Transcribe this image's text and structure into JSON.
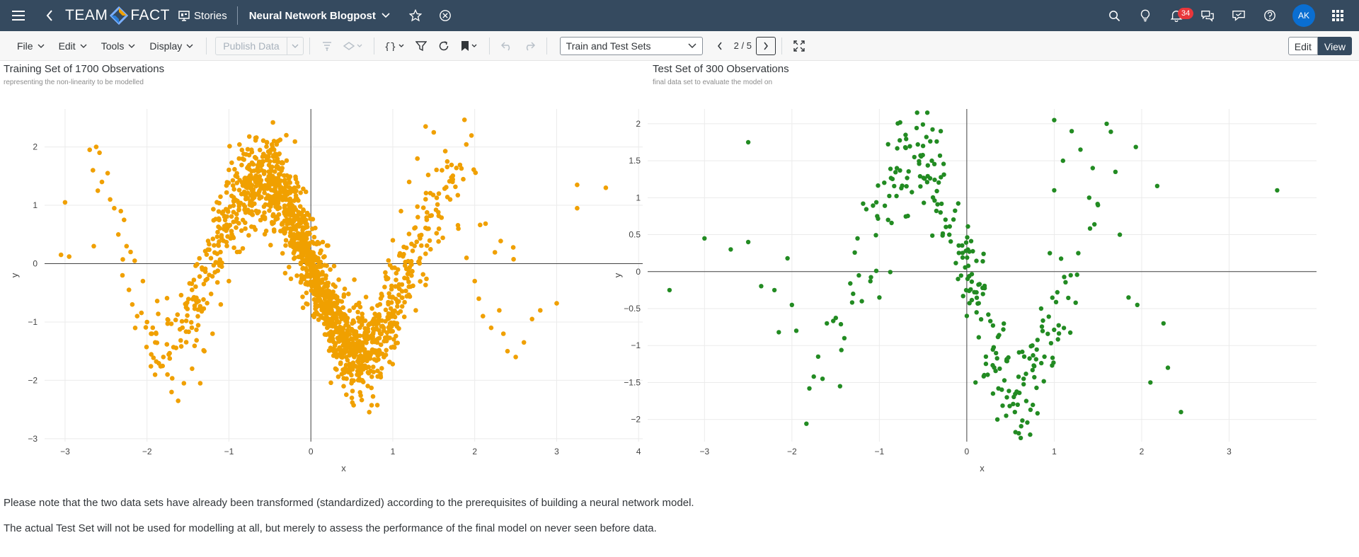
{
  "shell": {
    "logo_left": "TEAM",
    "logo_right": "FACT",
    "stories_label": "Stories",
    "story_title": "Neural Network Blogpost",
    "notification_count": "34",
    "avatar_initials": "AK"
  },
  "toolbar": {
    "file": "File",
    "edit": "Edit",
    "tools": "Tools",
    "display": "Display",
    "publish_data": "Publish Data",
    "page_name": "Train and Test Sets",
    "page_counter": "2 / 5",
    "edit_label": "Edit",
    "view_label": "View"
  },
  "charts": {
    "train": {
      "title": "Training Set of 1700 Observations",
      "subtitle": "representing the non-linearity to be modelled"
    },
    "test": {
      "title": "Test Set of 300 Observations",
      "subtitle": "final data set to evaluate the model on"
    }
  },
  "notes": {
    "line1": "Please note that the two data sets have already been transformed (standardized) according to the prerequisites of building a neural network model.",
    "line2": "The actual Test Set will not be used for modelling at all, but merely to assess the performance of the final model on never seen before data."
  },
  "chart_data": [
    {
      "type": "scatter",
      "title": "Training Set of 1700 Observations",
      "subtitle": "representing the non-linearity to be modelled",
      "xlabel": "x",
      "ylabel": "y",
      "xlim": [
        -3.25,
        4.05
      ],
      "ylim": [
        -3.05,
        2.65
      ],
      "xticks": [
        -3,
        -2,
        -1,
        0,
        1,
        2,
        3,
        4
      ],
      "yticks": [
        -3,
        -2,
        -1,
        0,
        1,
        2
      ],
      "grid": true,
      "color": "#f0a000",
      "n_points": 1700,
      "points": [
        [
          -3.0,
          1.05
        ],
        [
          -3.05,
          0.15
        ],
        [
          -2.95,
          0.12
        ],
        [
          -2.7,
          1.95
        ],
        [
          -2.62,
          2.0
        ],
        [
          -2.58,
          1.9
        ],
        [
          -2.66,
          1.6
        ],
        [
          -2.55,
          1.4
        ],
        [
          -2.48,
          1.55
        ],
        [
          -2.6,
          1.25
        ],
        [
          -2.45,
          1.1
        ],
        [
          -2.4,
          0.95
        ],
        [
          -2.32,
          0.9
        ],
        [
          -2.28,
          0.75
        ],
        [
          -2.65,
          0.3
        ],
        [
          -2.35,
          0.5
        ],
        [
          -2.25,
          0.3
        ],
        [
          -2.2,
          0.2
        ],
        [
          -2.15,
          0.05
        ],
        [
          -2.3,
          -0.2
        ],
        [
          -2.22,
          -0.45
        ],
        [
          -2.18,
          -0.7
        ],
        [
          -2.12,
          -0.9
        ],
        [
          -2.05,
          -0.3
        ],
        [
          -2.0,
          -1.0
        ],
        [
          -1.95,
          -1.2
        ],
        [
          -1.9,
          -1.35
        ],
        [
          -1.8,
          -1.6
        ],
        [
          -1.75,
          -1.9
        ],
        [
          -1.7,
          -2.2
        ],
        [
          -1.62,
          -2.35
        ],
        [
          -1.55,
          -2.05
        ],
        [
          -1.45,
          -1.8
        ],
        [
          -1.35,
          -2.05
        ],
        [
          -1.3,
          -1.5
        ],
        [
          -1.2,
          -1.2
        ],
        [
          -1.1,
          -0.7
        ],
        [
          -1.0,
          -0.3
        ],
        [
          -0.9,
          0.2
        ],
        [
          -0.8,
          0.6
        ],
        [
          -0.7,
          1.2
        ],
        [
          -0.6,
          1.6
        ],
        [
          -0.5,
          1.9
        ],
        [
          -0.4,
          2.1
        ],
        [
          -0.3,
          2.2
        ],
        [
          -0.2,
          1.3
        ],
        [
          -0.1,
          0.8
        ],
        [
          0.0,
          0.2
        ],
        [
          0.1,
          -0.5
        ],
        [
          0.2,
          -1.1
        ],
        [
          0.3,
          -1.8
        ],
        [
          0.4,
          -2.1
        ],
        [
          0.5,
          -2.3
        ],
        [
          0.6,
          -2.0
        ],
        [
          0.7,
          -1.6
        ],
        [
          0.8,
          -0.9
        ],
        [
          0.9,
          -0.4
        ],
        [
          1.0,
          0.4
        ],
        [
          1.1,
          0.9
        ],
        [
          1.2,
          1.4
        ],
        [
          1.3,
          1.8
        ],
        [
          1.4,
          2.35
        ],
        [
          1.5,
          2.25
        ],
        [
          1.6,
          1.6
        ],
        [
          1.7,
          1.1
        ],
        [
          1.8,
          0.6
        ],
        [
          1.9,
          0.1
        ],
        [
          2.0,
          -0.3
        ],
        [
          2.05,
          -0.6
        ],
        [
          2.1,
          -0.9
        ],
        [
          2.2,
          -1.1
        ],
        [
          2.3,
          -0.8
        ],
        [
          2.35,
          -1.2
        ],
        [
          2.4,
          -1.5
        ],
        [
          2.5,
          -1.6
        ],
        [
          2.6,
          -1.35
        ],
        [
          2.7,
          -0.95
        ],
        [
          2.8,
          -0.8
        ],
        [
          3.0,
          -0.68
        ],
        [
          3.25,
          1.35
        ],
        [
          3.25,
          0.95
        ],
        [
          3.6,
          1.3
        ]
      ]
    },
    {
      "type": "scatter",
      "title": "Test Set of 300 Observations",
      "subtitle": "final data set to evaluate the model on",
      "xlabel": "x",
      "ylabel": "y",
      "xlim": [
        -3.65,
        4.0
      ],
      "ylim": [
        -2.3,
        2.2
      ],
      "xticks": [
        -3,
        -2,
        -1,
        0,
        1,
        2,
        3
      ],
      "yticks": [
        -2,
        -1.5,
        -1,
        -0.5,
        0,
        0.5,
        1,
        1.5,
        2
      ],
      "grid": true,
      "color": "#228b22",
      "n_points": 300,
      "points": [
        [
          -3.4,
          -0.25
        ],
        [
          -3.0,
          0.45
        ],
        [
          -2.7,
          0.3
        ],
        [
          -2.5,
          1.75
        ],
        [
          -2.5,
          0.4
        ],
        [
          -2.2,
          -0.25
        ],
        [
          -2.05,
          0.18
        ],
        [
          -2.15,
          -0.82
        ],
        [
          -2.0,
          -0.45
        ],
        [
          -1.95,
          -0.8
        ],
        [
          -1.8,
          -1.58
        ],
        [
          -1.75,
          -1.42
        ],
        [
          -1.7,
          -1.15
        ],
        [
          -1.65,
          -1.45
        ],
        [
          -1.6,
          -0.7
        ],
        [
          -1.45,
          -1.55
        ],
        [
          -1.4,
          -0.9
        ],
        [
          -1.3,
          -0.3
        ],
        [
          -1.25,
          0.45
        ],
        [
          -1.2,
          -0.4
        ],
        [
          -1.0,
          -0.35
        ],
        [
          -0.9,
          0.7
        ],
        [
          -0.8,
          1.4
        ],
        [
          -0.7,
          1.85
        ],
        [
          -0.6,
          1.55
        ],
        [
          -0.5,
          1.7
        ],
        [
          -0.4,
          1.5
        ],
        [
          -0.3,
          0.8
        ],
        [
          -0.2,
          0.5
        ],
        [
          -0.1,
          -0.1
        ],
        [
          0.0,
          -0.6
        ],
        [
          0.1,
          -1.5
        ],
        [
          0.2,
          -1.4
        ],
        [
          0.3,
          -1.65
        ],
        [
          0.35,
          -2.0
        ],
        [
          0.45,
          -1.95
        ],
        [
          0.55,
          -1.9
        ],
        [
          0.65,
          -1.45
        ],
        [
          0.75,
          -1.0
        ],
        [
          0.85,
          -0.5
        ],
        [
          0.95,
          0.25
        ],
        [
          1.0,
          1.1
        ],
        [
          1.1,
          1.5
        ],
        [
          1.2,
          1.9
        ],
        [
          1.3,
          1.65
        ],
        [
          1.4,
          1.0
        ],
        [
          1.5,
          0.9
        ],
        [
          1.6,
          2.0
        ],
        [
          1.7,
          1.35
        ],
        [
          1.75,
          0.5
        ],
        [
          1.85,
          -0.35
        ],
        [
          1.95,
          -0.45
        ],
        [
          2.1,
          -1.5
        ],
        [
          2.25,
          -0.7
        ],
        [
          2.3,
          -1.3
        ],
        [
          2.45,
          -1.9
        ],
        [
          3.55,
          1.1
        ],
        [
          1.0,
          2.05
        ]
      ]
    }
  ]
}
